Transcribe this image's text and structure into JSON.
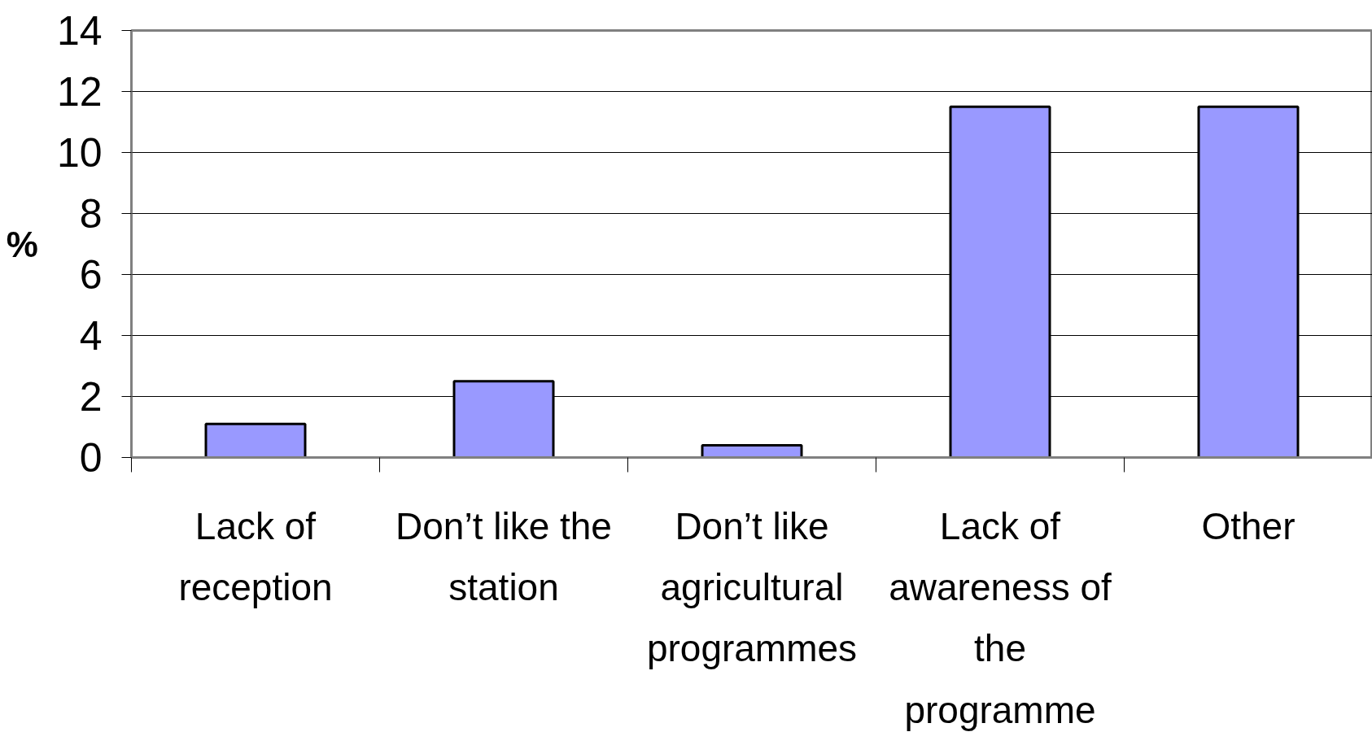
{
  "chart_data": {
    "type": "bar",
    "ylabel": "%",
    "categories": [
      "Lack of\nreception",
      "Don’t like the\nstation",
      "Don’t like\nagricultural\nprogrammes",
      "Lack of\nawareness of\nthe\nprogramme",
      "Other"
    ],
    "values": [
      1.1,
      2.5,
      0.4,
      11.5,
      11.5
    ],
    "color": "#9999ff",
    "ylim": [
      0,
      14
    ],
    "yticks": [
      0,
      2,
      4,
      6,
      8,
      10,
      12,
      14
    ],
    "grid": "y"
  }
}
